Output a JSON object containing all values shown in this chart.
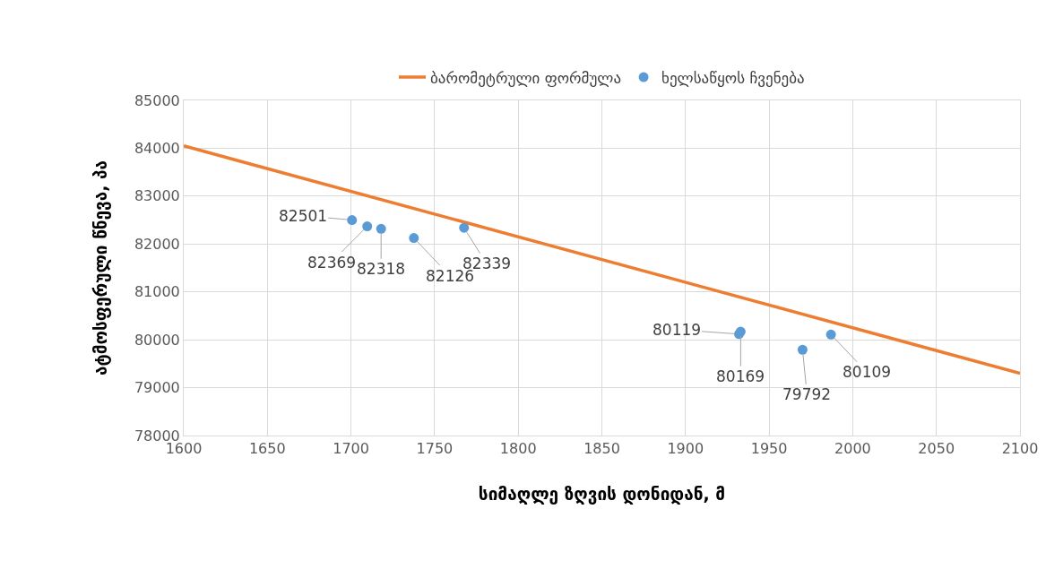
{
  "chart_data": {
    "type": "scatter",
    "xlabel": "სიმაღლე ზღვის დონიდან, მ",
    "ylabel": "ატმოსფერული წნევა, პა",
    "xlim": [
      1600,
      2100
    ],
    "xticks": [
      1600,
      1650,
      1700,
      1750,
      1800,
      1850,
      1900,
      1950,
      2000,
      2050,
      2100
    ],
    "ylim": [
      78000,
      85000
    ],
    "yticks": [
      78000,
      79000,
      80000,
      81000,
      82000,
      83000,
      84000,
      85000
    ],
    "grid": true,
    "legend": "top",
    "series": [
      {
        "name": "ბარომეტრული ფორმულა",
        "type": "line",
        "color": "#ed7d31",
        "x": [
          1600,
          2100
        ],
        "values": [
          84050,
          79300
        ],
        "line_style": "solid"
      },
      {
        "name": "ხელსაწყოს ჩვენება",
        "marker": "circle",
        "color": "#5b9bd5",
        "x": [
          1700.6,
          1709.7,
          1718,
          1737.6,
          1767.6,
          1932,
          1933,
          1970,
          1987
        ],
        "values": [
          82501,
          82369,
          82318,
          82126,
          82339,
          80119,
          80169,
          79792,
          80109
        ],
        "data_labels": true
      }
    ]
  }
}
